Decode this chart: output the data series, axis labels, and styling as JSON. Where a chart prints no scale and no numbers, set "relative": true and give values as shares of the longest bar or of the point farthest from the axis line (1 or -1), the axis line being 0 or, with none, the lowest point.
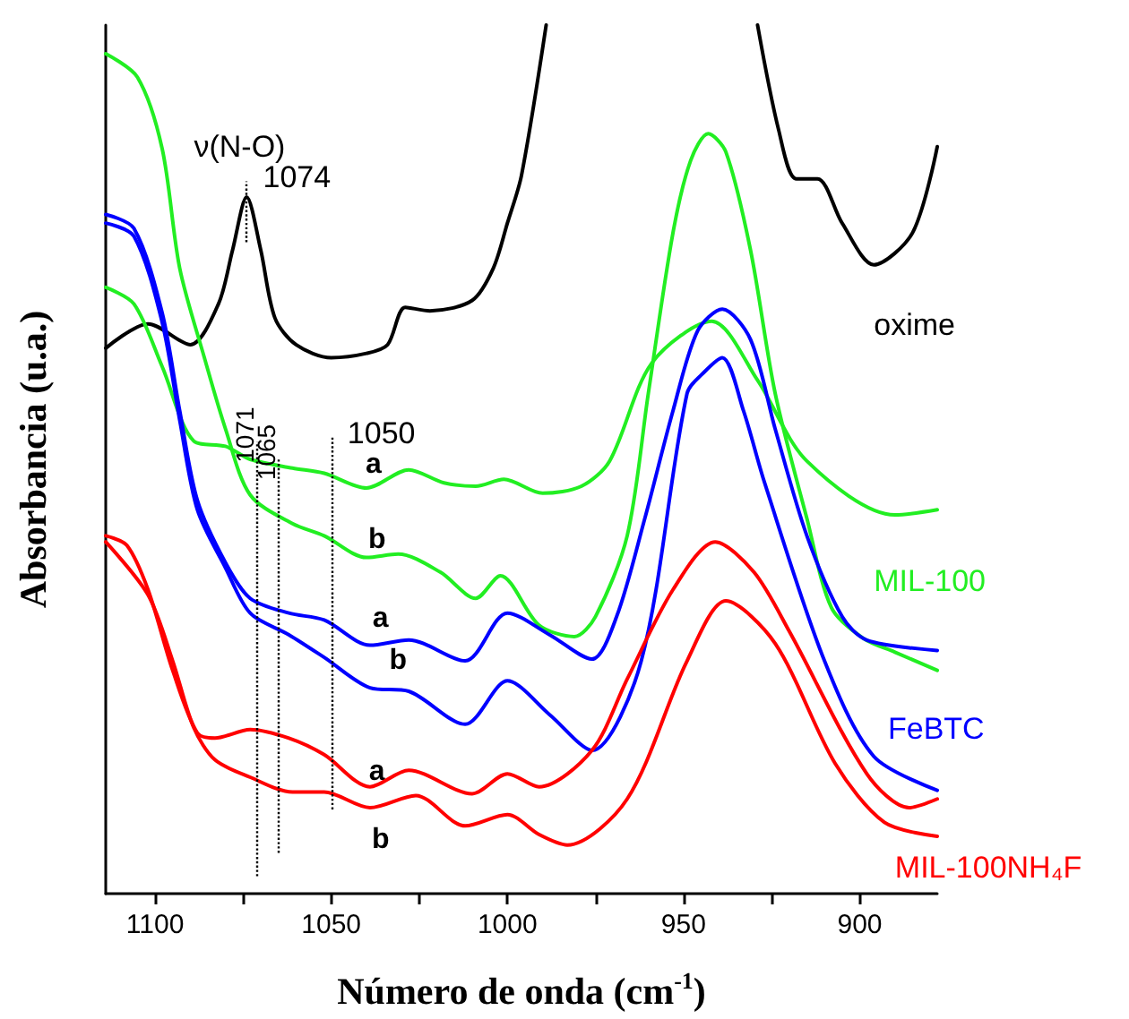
{
  "chart_data": {
    "type": "line",
    "relative": true,
    "xlabel": "Número de onda (cm$^{-1}$)",
    "ylabel": "Absorbancia (u.a.)",
    "xlim": [
      1114,
      878
    ],
    "xticks": [
      1100,
      {
        "value": 1075,
        "label": null
      },
      1050,
      {
        "value": 1025,
        "label": null
      },
      1000,
      {
        "value": 975,
        "label": null
      },
      950,
      {
        "value": 925,
        "label": null
      },
      900
    ],
    "grid": false,
    "legend": false,
    "marker": "none",
    "line_style": "solid",
    "tick_labels": "x",
    "series": [
      {
        "name": "oxime",
        "color": "#000000",
        "x": [
          1114,
          1102,
          1090,
          1082,
          1078,
          1074,
          1070,
          1066,
          1060,
          1050,
          1040,
          1034,
          1029,
          1022,
          1010,
          1004,
          1000,
          996,
          989,
          960,
          929,
          923,
          918,
          912,
          905,
          896,
          885,
          878
        ],
        "values": [
          0.628,
          0.656,
          0.632,
          0.679,
          0.741,
          0.802,
          0.741,
          0.663,
          0.632,
          0.617,
          0.622,
          0.632,
          0.675,
          0.671,
          0.683,
          0.72,
          0.772,
          0.827,
          1.0,
          null,
          1.0,
          0.879,
          0.823,
          0.823,
          0.772,
          0.724,
          0.761,
          0.86
        ]
      },
      {
        "name": "MIL-100",
        "color": "#22ee22",
        "x": [
          1114,
          1106,
          1098,
          1089,
          1080,
          1073,
          1061,
          1052,
          1040,
          1028,
          1018,
          1009,
          1001,
          990,
          979,
          971,
          959,
          942,
          929,
          915,
          890,
          878
        ],
        "values": [
          0.698,
          0.679,
          0.607,
          0.521,
          0.515,
          0.5,
          0.49,
          0.484,
          0.467,
          0.488,
          0.473,
          0.469,
          0.477,
          0.461,
          0.469,
          0.498,
          0.611,
          0.659,
          0.591,
          0.498,
          0.436,
          0.442
        ]
      },
      {
        "color": "#22ee22",
        "x": [
          1114,
          1105,
          1098,
          1093,
          1086,
          1080,
          1073,
          1061,
          1052,
          1040,
          1031,
          1019,
          1009,
          1002,
          991,
          981,
          975,
          966,
          960,
          953,
          948,
          943,
          938,
          931,
          924,
          915,
          908,
          899,
          890,
          878
        ],
        "values": [
          0.967,
          0.94,
          0.858,
          0.72,
          0.617,
          0.535,
          0.459,
          0.426,
          0.412,
          0.387,
          0.391,
          0.37,
          0.34,
          0.366,
          0.309,
          0.296,
          0.319,
          0.412,
          0.576,
          0.761,
          0.844,
          0.875,
          0.854,
          0.741,
          0.576,
          0.432,
          0.329,
          0.294,
          0.278,
          0.257
        ]
      },
      {
        "name": "FeBTC",
        "color": "#0000ff",
        "x": [
          1114,
          1106,
          1098,
          1093,
          1088,
          1080,
          1073,
          1062,
          1052,
          1039,
          1028,
          1012,
          1000,
          988,
          976,
          969,
          961,
          953,
          946,
          939,
          931,
          924,
          915,
          905,
          898,
          878
        ],
        "values": [
          0.782,
          0.766,
          0.669,
          0.556,
          0.453,
          0.381,
          0.34,
          0.323,
          0.315,
          0.286,
          0.292,
          0.268,
          0.323,
          0.298,
          0.27,
          0.319,
          0.432,
          0.556,
          0.648,
          0.673,
          0.638,
          0.535,
          0.412,
          0.319,
          0.292,
          0.28
        ]
      },
      {
        "color": "#0000ff",
        "x": [
          1114,
          1106,
          1098,
          1093,
          1088,
          1080,
          1073,
          1062,
          1052,
          1039,
          1028,
          1012,
          1000,
          988,
          976,
          962,
          949,
          944,
          939,
          933,
          927,
          910,
          896,
          878
        ],
        "values": [
          0.772,
          0.757,
          0.658,
          0.545,
          0.442,
          0.375,
          0.323,
          0.298,
          0.272,
          0.237,
          0.233,
          0.195,
          0.245,
          0.206,
          0.165,
          0.268,
          0.576,
          0.601,
          0.617,
          0.556,
          0.473,
          0.268,
          0.158,
          0.119
        ]
      },
      {
        "name": "MIL-100NH₄F",
        "color": "#ff0000",
        "x": [
          1114,
          1108,
          1102,
          1095,
          1088,
          1083,
          1073,
          1062,
          1052,
          1039,
          1028,
          1010,
          1000,
          991,
          976,
          966,
          953,
          941,
          930,
          920,
          898,
          886,
          878
        ],
        "values": [
          0.412,
          0.401,
          0.35,
          0.257,
          0.185,
          0.179,
          0.189,
          0.179,
          0.16,
          0.123,
          0.142,
          0.115,
          0.138,
          0.123,
          0.165,
          0.247,
          0.35,
          0.405,
          0.37,
          0.302,
          0.138,
          0.099,
          0.109
        ]
      },
      {
        "color": "#ff0000",
        "x": [
          1114,
          1102,
          1095,
          1089,
          1083,
          1073,
          1061,
          1052,
          1039,
          1026,
          1012,
          1000,
          991,
          983,
          966,
          949,
          938,
          924,
          907,
          893,
          878
        ],
        "values": [
          0.405,
          0.344,
          0.268,
          0.191,
          0.154,
          0.134,
          0.117,
          0.117,
          0.099,
          0.113,
          0.078,
          0.091,
          0.068,
          0.056,
          0.109,
          0.268,
          0.337,
          0.288,
          0.15,
          0.082,
          0.066
        ]
      }
    ],
    "ref_lines": [
      {
        "axis": "x",
        "value": 1074,
        "label": "1074",
        "line_style": "dotted",
        "color": "#000000"
      },
      {
        "axis": "x",
        "value": 1071,
        "label": "1071",
        "line_style": "dotted",
        "color": "#000000"
      },
      {
        "axis": "x",
        "value": 1065,
        "label": "1065",
        "line_style": "dotted",
        "color": "#000000"
      },
      {
        "axis": "x",
        "value": 1050,
        "label": "1050",
        "line_style": "dotted",
        "color": "#000000"
      }
    ],
    "annotations": [
      "ν(N-O)",
      "a",
      "b",
      "a",
      "b",
      "a",
      "b"
    ]
  }
}
